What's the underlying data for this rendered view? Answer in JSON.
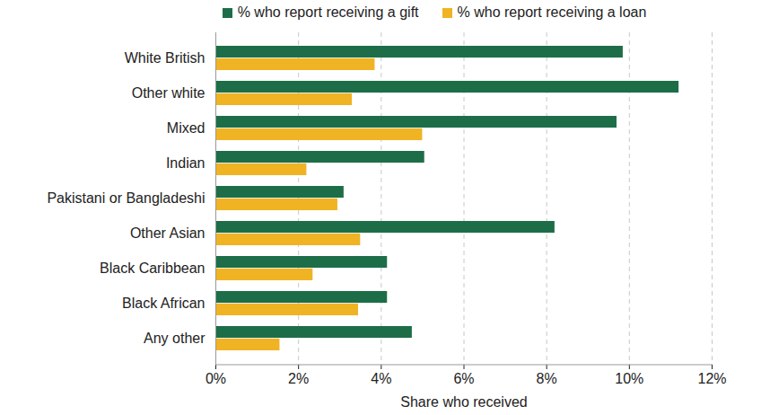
{
  "chart_data": {
    "type": "bar",
    "orientation": "horizontal",
    "grid": true,
    "legend": "top",
    "xlabel": "Share who received",
    "categories": [
      "White British",
      "Other white",
      "Mixed",
      "Indian",
      "Pakistani or Bangladeshi",
      "Other Asian",
      "Black Caribbean",
      "Black African",
      "Any other"
    ],
    "series": [
      {
        "name": "% who report receiving a gift",
        "color": "#1d6e48",
        "values": [
          9.85,
          11.2,
          9.7,
          5.05,
          3.1,
          8.2,
          4.15,
          4.15,
          4.75
        ]
      },
      {
        "name": "% who report receiving a loan",
        "color": "#f0b323",
        "values": [
          3.85,
          3.3,
          5.0,
          2.2,
          2.95,
          3.5,
          2.35,
          3.45,
          1.55
        ]
      }
    ],
    "xlim": [
      0,
      12
    ],
    "xticks": [
      {
        "value": 0,
        "label": "0%"
      },
      {
        "value": 2,
        "label": "2%"
      },
      {
        "value": 4,
        "label": "4%"
      },
      {
        "value": 6,
        "label": "6%"
      },
      {
        "value": 8,
        "label": "8%"
      },
      {
        "value": 10,
        "label": "10%"
      },
      {
        "value": 12,
        "label": "12%"
      }
    ]
  }
}
